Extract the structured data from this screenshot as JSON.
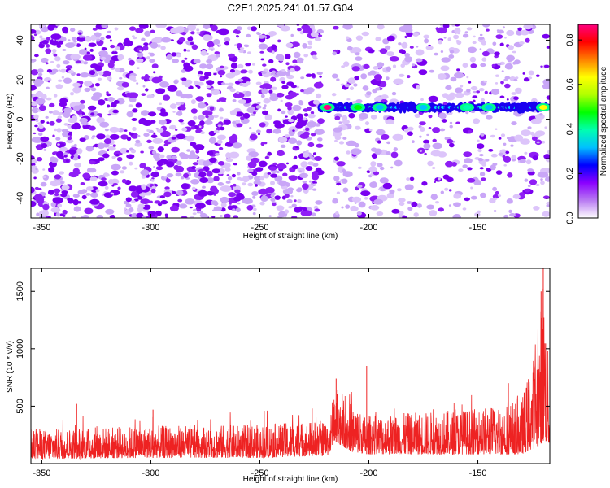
{
  "title": "C2E1.2025.241.01.57.G04",
  "chart_data": [
    {
      "type": "heatmap",
      "xlabel": "Height of straight line (km)",
      "ylabel": "Frequency (Hz)",
      "xlim": [
        -355,
        -117
      ],
      "ylim": [
        -50,
        48
      ],
      "xticks": [
        -350,
        -300,
        -250,
        -200,
        -150
      ],
      "yticks": [
        -40,
        -20,
        0,
        20,
        40
      ],
      "colorbar": {
        "label": "Normalized spectral amplitude",
        "range": [
          0,
          0.87
        ],
        "ticks": [
          "0.0",
          "0.2",
          "0.4",
          "0.6",
          "0.8"
        ],
        "tick_values": [
          0,
          0.2,
          0.4,
          0.6,
          0.8
        ],
        "colors": [
          "#ffffff",
          "#b87af2",
          "#8a00ff",
          "#0000ff",
          "#00c0ff",
          "#00ffb0",
          "#00ff00",
          "#b0ff00",
          "#ffff00",
          "#ff8000",
          "#ff0000",
          "#ff0080"
        ]
      },
      "gap": [
        -222,
        -218
      ],
      "signal_band": {
        "frequency_hz": 6,
        "x_range": [
          -222,
          -117
        ],
        "peaks": [
          {
            "x": -219,
            "amplitude": 0.87
          },
          {
            "x": -205,
            "amplitude": 0.45
          },
          {
            "x": -195,
            "amplitude": 0.35
          },
          {
            "x": -175,
            "amplitude": 0.3
          },
          {
            "x": -155,
            "amplitude": 0.4
          },
          {
            "x": -145,
            "amplitude": 0.35
          },
          {
            "x": -120,
            "amplitude": 0.6
          }
        ]
      }
    },
    {
      "type": "line",
      "xlabel": "Height of straight line (km)",
      "ylabel": "SNR (10 * v/v)",
      "xlim": [
        -355,
        -117
      ],
      "ylim": [
        0,
        1700
      ],
      "xticks": [
        -350,
        -300,
        -250,
        -200,
        -150
      ],
      "yticks": [
        500,
        1000,
        1500
      ],
      "color": "#ee2222",
      "envelope": [
        {
          "x": -355,
          "low": 40,
          "high": 300
        },
        {
          "x": -300,
          "low": 50,
          "high": 330
        },
        {
          "x": -250,
          "low": 50,
          "high": 340
        },
        {
          "x": -218,
          "low": 70,
          "high": 380
        },
        {
          "x": -216,
          "low": 200,
          "high": 650
        },
        {
          "x": -208,
          "low": 100,
          "high": 520
        },
        {
          "x": -200,
          "low": 80,
          "high": 420
        },
        {
          "x": -150,
          "low": 80,
          "high": 480
        },
        {
          "x": -130,
          "low": 80,
          "high": 560
        },
        {
          "x": -122,
          "low": 150,
          "high": 1100
        },
        {
          "x": -120,
          "low": 200,
          "high": 1700
        },
        {
          "x": -117,
          "low": 150,
          "high": 700
        }
      ],
      "spikes": [
        {
          "x": -334,
          "y": 520
        },
        {
          "x": -299,
          "y": 470
        },
        {
          "x": -248,
          "y": 460
        },
        {
          "x": -226,
          "y": 480
        },
        {
          "x": -215,
          "y": 740
        },
        {
          "x": -201,
          "y": 850
        },
        {
          "x": -136,
          "y": 700
        },
        {
          "x": -120,
          "y": 1700
        },
        {
          "x": -121,
          "y": 1500
        }
      ]
    }
  ]
}
